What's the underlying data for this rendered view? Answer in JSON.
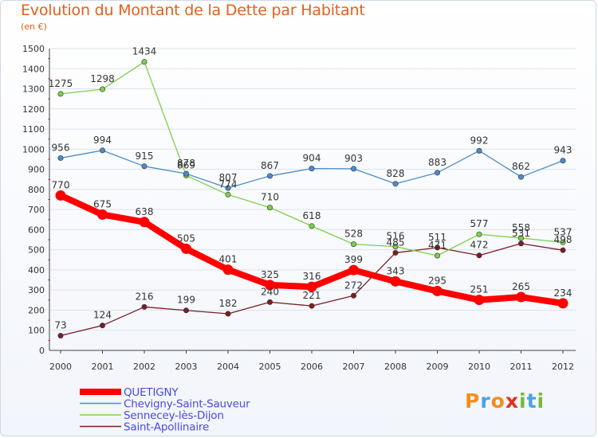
{
  "chart_data": {
    "type": "line",
    "title": "Evolution du Montant de la Dette par Habitant",
    "unit_label": "(en €)",
    "x": [
      "2000",
      "2001",
      "2002",
      "2003",
      "2004",
      "2005",
      "2006",
      "2007",
      "2008",
      "2009",
      "2010",
      "2011",
      "2012"
    ],
    "ylim": [
      0,
      1500
    ],
    "yticks": [
      0,
      100,
      200,
      300,
      400,
      500,
      600,
      700,
      800,
      900,
      1000,
      1100,
      1200,
      1300,
      1400,
      1500
    ],
    "ytick_labels": [
      "0",
      "100",
      "200",
      "300",
      "400",
      "500",
      "600",
      "700",
      "800",
      "900",
      "1000",
      "1100",
      "1200",
      "1300",
      "1400",
      "1500"
    ],
    "grid": "horizontal",
    "series": [
      {
        "name": "QUETIGNY",
        "color": "#ff0000",
        "values": [
          770,
          675,
          638,
          505,
          401,
          325,
          316,
          399,
          343,
          295,
          251,
          265,
          234
        ],
        "labels": [
          "770",
          "675",
          "638",
          "505",
          "401",
          "325",
          "316",
          "399",
          "343",
          "295",
          "251",
          "265",
          "234"
        ]
      },
      {
        "name": "Chevigny-Saint-Sauveur",
        "color": "#4b8cc8",
        "values": [
          956,
          994,
          915,
          878,
          807,
          867,
          904,
          903,
          828,
          883,
          992,
          862,
          943
        ],
        "labels": [
          "956",
          "994",
          "915",
          "878",
          "807",
          "867",
          "904",
          "903",
          "828",
          "883",
          "992",
          "862",
          "943"
        ]
      },
      {
        "name": "Sennecey-lès-Dijon",
        "color": "#7fcf4a",
        "values": [
          1275,
          1298,
          1434,
          869,
          774,
          710,
          618,
          528,
          516,
          471,
          577,
          558,
          537
        ],
        "labels": [
          "1275",
          "1298",
          "1434",
          "869",
          "774",
          "710",
          "618",
          "528",
          "516",
          "471",
          "577",
          "558",
          "537"
        ]
      },
      {
        "name": "Saint-Apollinaire",
        "color": "#7a1e24",
        "values": [
          73,
          124,
          216,
          199,
          182,
          240,
          221,
          272,
          485,
          511,
          472,
          531,
          498
        ],
        "labels": [
          "73",
          "124",
          "216",
          "199",
          "182",
          "240",
          "221",
          "272",
          "485",
          "511",
          "472",
          "531",
          "498"
        ]
      }
    ],
    "legend_position": "bottom-left"
  },
  "logo": {
    "letters": [
      "P",
      "r",
      "o",
      "x",
      "i",
      "t",
      "i"
    ],
    "colors": [
      "#f28e1c",
      "#4aa3df",
      "#f28e1c",
      "#e0301e",
      "#78b83b",
      "#4aa3df",
      "#78b83b"
    ]
  }
}
